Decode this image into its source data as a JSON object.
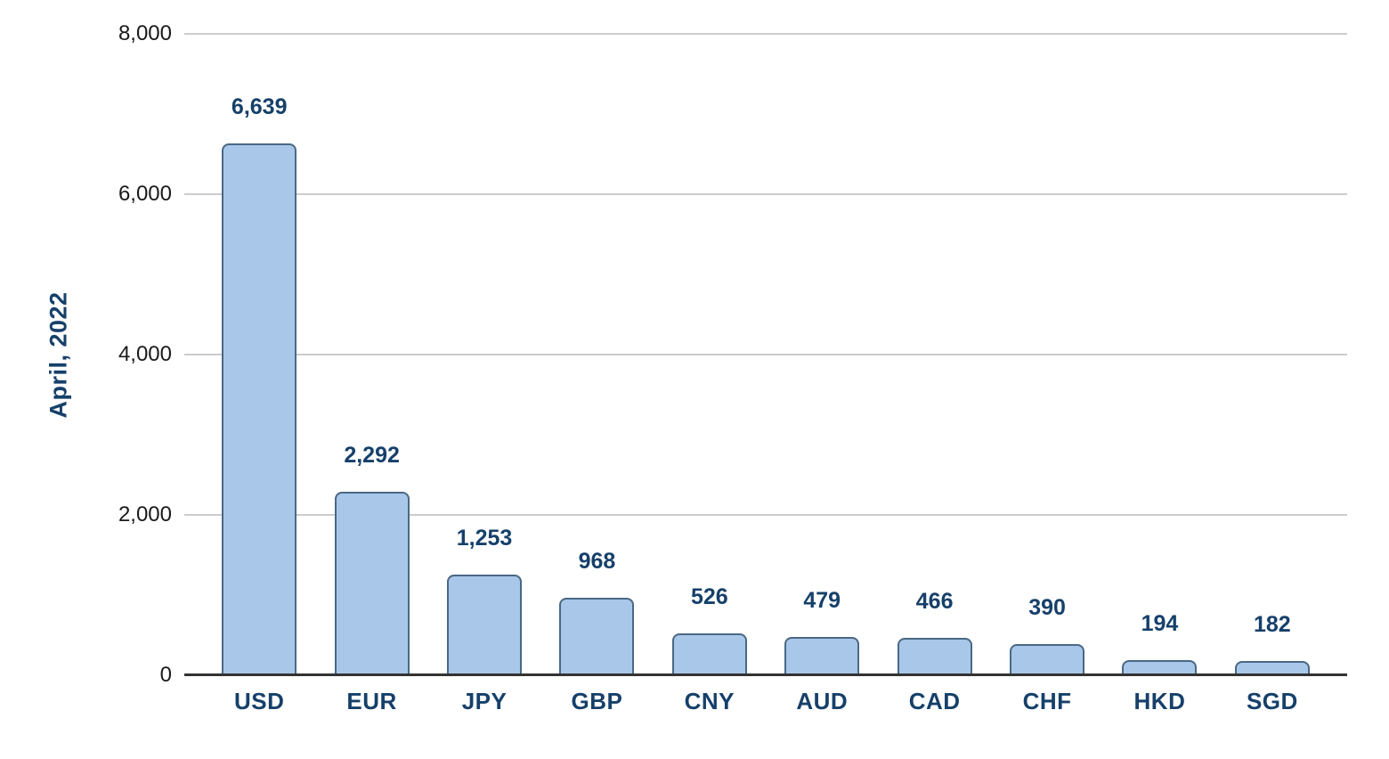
{
  "chart_data": {
    "type": "bar",
    "categories": [
      "USD",
      "EUR",
      "JPY",
      "GBP",
      "CNY",
      "AUD",
      "CAD",
      "CHF",
      "HKD",
      "SGD"
    ],
    "values": [
      6639,
      2292,
      1253,
      968,
      526,
      479,
      466,
      390,
      194,
      182
    ],
    "value_labels": [
      "6,639",
      "2,292",
      "1,253",
      "968",
      "526",
      "479",
      "466",
      "390",
      "194",
      "182"
    ],
    "title": "",
    "xlabel": "",
    "ylabel": "April, 2022",
    "ylim": [
      0,
      8000
    ],
    "yticks": [
      0,
      2000,
      4000,
      6000,
      8000
    ],
    "ytick_labels": [
      "0",
      "2,000",
      "4,000",
      "6,000",
      "8,000"
    ],
    "grid": true,
    "legend": false,
    "colors": {
      "bar_fill": "#a9c7e9",
      "bar_border": "#4a6885",
      "value_label": "#16406a",
      "category_label": "#16406a",
      "y_axis_title": "#16406a",
      "tick_label": "#1a1a1a",
      "gridline": "#cccccc",
      "baseline": "#333333",
      "background": "#ffffff"
    }
  }
}
